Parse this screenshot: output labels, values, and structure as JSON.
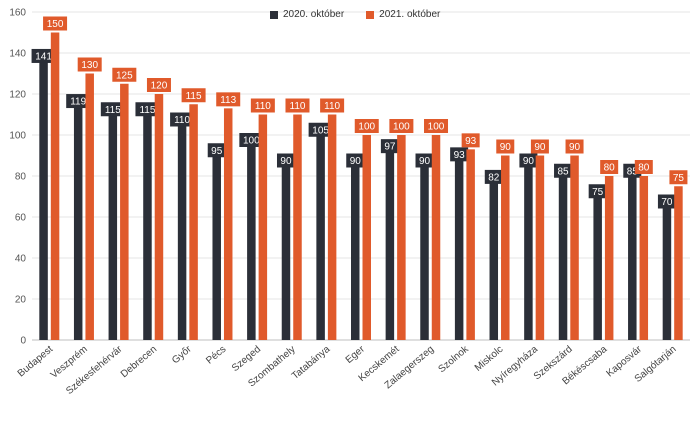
{
  "chart_data": {
    "type": "bar",
    "title": "",
    "xlabel": "",
    "ylabel": "",
    "ylim": [
      0,
      160
    ],
    "y_ticks": [
      0,
      20,
      40,
      60,
      80,
      100,
      120,
      140,
      160
    ],
    "grid": "horizontal",
    "legend_position": "top-center",
    "categories": [
      "Budapest",
      "Veszprém",
      "Székesfehérvár",
      "Debrecen",
      "Győr",
      "Pécs",
      "Szeged",
      "Szombathely",
      "Tatabánya",
      "Eger",
      "Kecskemét",
      "Zalaegerszeg",
      "Szolnok",
      "Miskolc",
      "Nyíregyháza",
      "Szekszárd",
      "Békéscsaba",
      "Kaposvár",
      "Salgótarján"
    ],
    "series": [
      {
        "name": "2020. október",
        "color": "#2b2f38",
        "values": [
          141,
          119,
          115,
          115,
          110,
          95,
          100,
          90,
          105,
          90,
          97,
          90,
          93,
          82,
          90,
          85,
          75,
          85,
          70
        ]
      },
      {
        "name": "2021. október",
        "color": "#e05a2b",
        "values": [
          150,
          130,
          125,
          120,
          115,
          113,
          110,
          110,
          110,
          100,
          100,
          100,
          93,
          90,
          90,
          90,
          80,
          80,
          75
        ]
      }
    ]
  }
}
